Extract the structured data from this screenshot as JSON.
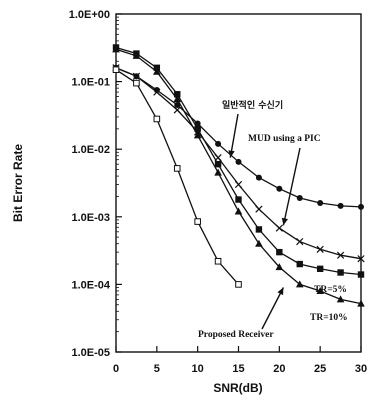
{
  "chart_data": {
    "type": "line",
    "xlabel": "SNR(dB)",
    "ylabel": "Bit Error Rate",
    "xlim": [
      0,
      30
    ],
    "ylim": [
      1e-05,
      1
    ],
    "yscale": "log",
    "grid": false,
    "x_ticks": [
      0,
      5,
      10,
      15,
      20,
      25,
      30
    ],
    "x_tick_labels": [
      "0",
      "5",
      "10",
      "15",
      "20",
      "25",
      "30"
    ],
    "y_ticks": [
      1,
      0.1,
      0.01,
      0.001,
      0.0001,
      1e-05
    ],
    "y_tick_labels": [
      "1.0E+00",
      "1.0E-01",
      "1.0E-02",
      "1.0E-03",
      "1.0E-04",
      "1.0E-05"
    ],
    "series": [
      {
        "name": "일반적인 수신기",
        "marker": "circle",
        "x": [
          0,
          2.5,
          5,
          7.5,
          10,
          12.5,
          15,
          17.5,
          20,
          22.5,
          25,
          27.5,
          30
        ],
        "y": [
          0.16,
          0.12,
          0.075,
          0.045,
          0.024,
          0.012,
          0.0065,
          0.0038,
          0.0026,
          0.0019,
          0.0016,
          0.00145,
          0.0014
        ]
      },
      {
        "name": "MUD using a PIC",
        "marker": "x",
        "x": [
          0,
          2.5,
          5,
          7.5,
          10,
          12.5,
          15,
          17.5,
          20,
          22.5,
          25,
          27.5,
          30
        ],
        "y": [
          0.16,
          0.12,
          0.07,
          0.038,
          0.018,
          0.0075,
          0.003,
          0.0013,
          0.00068,
          0.00043,
          0.00033,
          0.00027,
          0.00024
        ]
      },
      {
        "name": "TR=5%",
        "marker": "square-filled",
        "x": [
          0,
          2.5,
          5,
          7.5,
          10,
          12.5,
          15,
          17.5,
          20,
          22.5,
          25,
          27.5,
          30
        ],
        "y": [
          0.32,
          0.26,
          0.16,
          0.065,
          0.02,
          0.006,
          0.0018,
          0.00065,
          0.0003,
          0.0002,
          0.00017,
          0.00015,
          0.00014
        ]
      },
      {
        "name": "TR=10%",
        "marker": "triangle",
        "x": [
          0,
          2.5,
          5,
          7.5,
          10,
          12.5,
          15,
          17.5,
          20,
          22.5,
          25,
          27.5,
          30
        ],
        "y": [
          0.3,
          0.24,
          0.14,
          0.055,
          0.016,
          0.0045,
          0.0012,
          0.0004,
          0.00018,
          0.0001,
          8e-05,
          6e-05,
          5.2e-05
        ]
      },
      {
        "name": "Proposed Receiver",
        "marker": "square-open",
        "x": [
          0,
          2.5,
          5,
          7.5,
          10,
          12.5,
          15
        ],
        "y": [
          0.15,
          0.095,
          0.028,
          0.0052,
          0.00085,
          0.00022,
          0.0001
        ]
      }
    ],
    "annotations": [
      {
        "text": "일반적인  수신기",
        "arrow_to": [
          14,
          0.0075
        ]
      },
      {
        "text": "MUD using a PIC",
        "arrow_to": [
          20.5,
          0.00075
        ]
      },
      {
        "text": "TR=5%"
      },
      {
        "text": "TR=10%"
      },
      {
        "text": "Proposed  Receiver",
        "arrow_to": [
          20.5,
          9e-05
        ]
      }
    ]
  }
}
